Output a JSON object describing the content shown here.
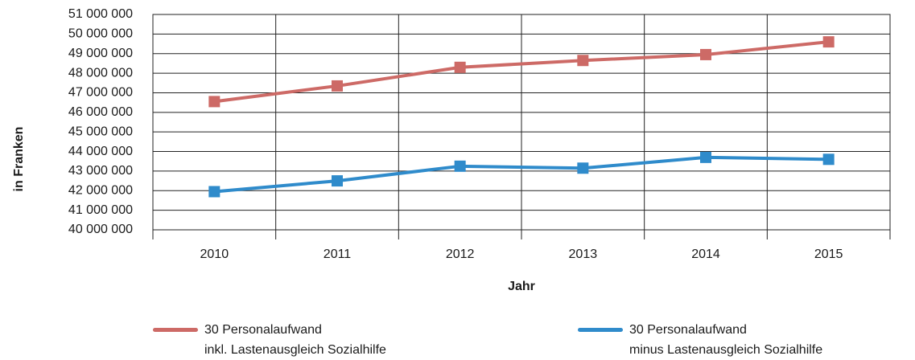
{
  "chart_data": {
    "type": "line",
    "x_label": "Jahr",
    "y_label": "in Franken",
    "categories": [
      "2010",
      "2011",
      "2012",
      "2013",
      "2014",
      "2015"
    ],
    "series": [
      {
        "name": "30 Personalaufwand\ninkl. Lastenausgleich Sozialhilfe",
        "color": "#cd6a66",
        "values": [
          46550000,
          47350000,
          48300000,
          48650000,
          48950000,
          49600000
        ]
      },
      {
        "name": "30 Personalaufwand\nminus Lastenausgleich Sozialhilfe",
        "color": "#2f8bcb",
        "values": [
          41950000,
          42500000,
          43250000,
          43150000,
          43700000,
          43600000
        ]
      }
    ],
    "ylim": [
      40000000,
      51000000
    ],
    "yticks": [
      {
        "value": 40000000,
        "label": "40 000 000"
      },
      {
        "value": 41000000,
        "label": "41 000 000"
      },
      {
        "value": 42000000,
        "label": "42 000 000"
      },
      {
        "value": 43000000,
        "label": "43 000 000"
      },
      {
        "value": 44000000,
        "label": "44 000 000"
      },
      {
        "value": 45000000,
        "label": "45 000 000"
      },
      {
        "value": 46000000,
        "label": "46 000 000"
      },
      {
        "value": 47000000,
        "label": "47 000 000"
      },
      {
        "value": 48000000,
        "label": "48 000 000"
      },
      {
        "value": 49000000,
        "label": "49 000 000"
      },
      {
        "value": 50000000,
        "label": "50 000 000"
      },
      {
        "value": 51000000,
        "label": "51 000 000"
      }
    ],
    "grid": true,
    "legend": "bottom"
  }
}
